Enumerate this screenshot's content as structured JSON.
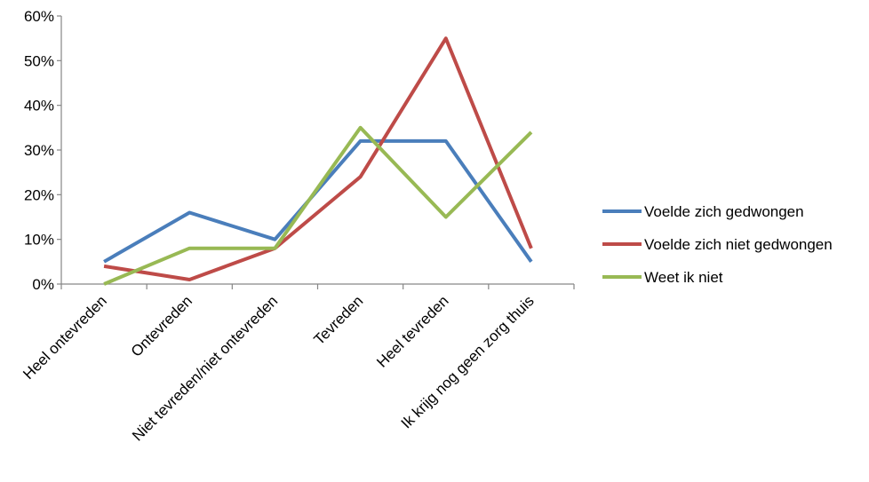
{
  "chart_data": {
    "type": "line",
    "categories": [
      "Heel ontevreden",
      "Ontevreden",
      "Niet tevreden/niet ontevreden",
      "Tevreden",
      "Heel tevreden",
      "Ik krijg nog geen zorg thuis"
    ],
    "series": [
      {
        "name": "Voelde zich gedwongen",
        "color": "#4a7ebb",
        "values": [
          5,
          16,
          10,
          32,
          32,
          5
        ]
      },
      {
        "name": "Voelde zich niet gedwongen",
        "color": "#be4b48",
        "values": [
          4,
          1,
          8,
          24,
          55,
          8
        ]
      },
      {
        "name": "Weet ik niet",
        "color": "#98b954",
        "values": [
          0,
          8,
          8,
          35,
          15,
          34
        ]
      }
    ],
    "yticks": [
      "0%",
      "10%",
      "20%",
      "30%",
      "40%",
      "50%",
      "60%"
    ],
    "ylim": [
      0,
      60
    ],
    "grid": false,
    "legend_position": "right"
  }
}
